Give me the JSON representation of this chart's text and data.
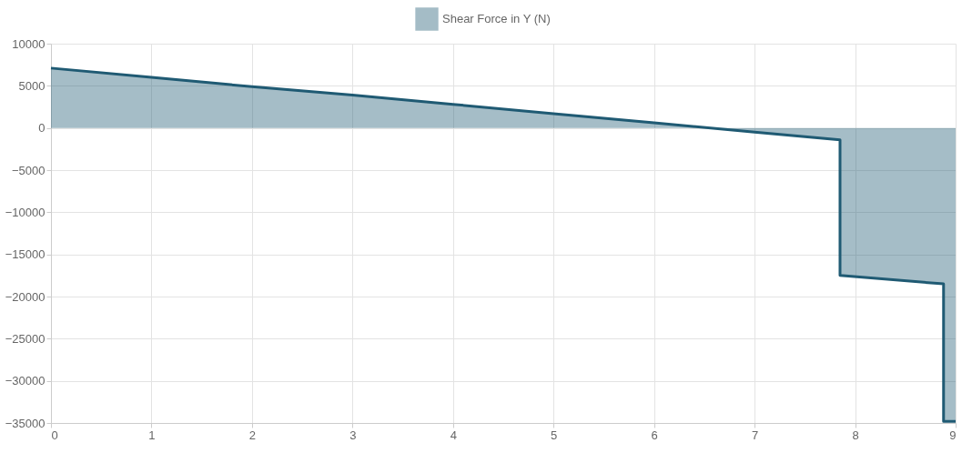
{
  "chart_data": {
    "type": "area",
    "x": [
      0,
      1,
      2,
      3,
      4,
      5,
      6,
      7,
      7.85,
      7.85,
      8.88,
      8.88,
      9
    ],
    "series": [
      {
        "name": "Shear Force in Y (N)",
        "color": "#1f5a73",
        "values": [
          7100,
          6000,
          4900,
          3900,
          2800,
          1700,
          600,
          -500,
          -1400,
          -17500,
          -18500,
          -34800,
          -34800
        ]
      }
    ],
    "xlim": [
      0,
      9
    ],
    "xticks": [
      0,
      1,
      2,
      3,
      4,
      5,
      6,
      7,
      8,
      9
    ],
    "ylim": [
      -35000,
      10000
    ],
    "yticks": [
      -35000,
      -30000,
      -25000,
      -20000,
      -15000,
      -10000,
      -5000,
      0,
      5000,
      10000
    ],
    "grid": true,
    "legend": "top"
  }
}
